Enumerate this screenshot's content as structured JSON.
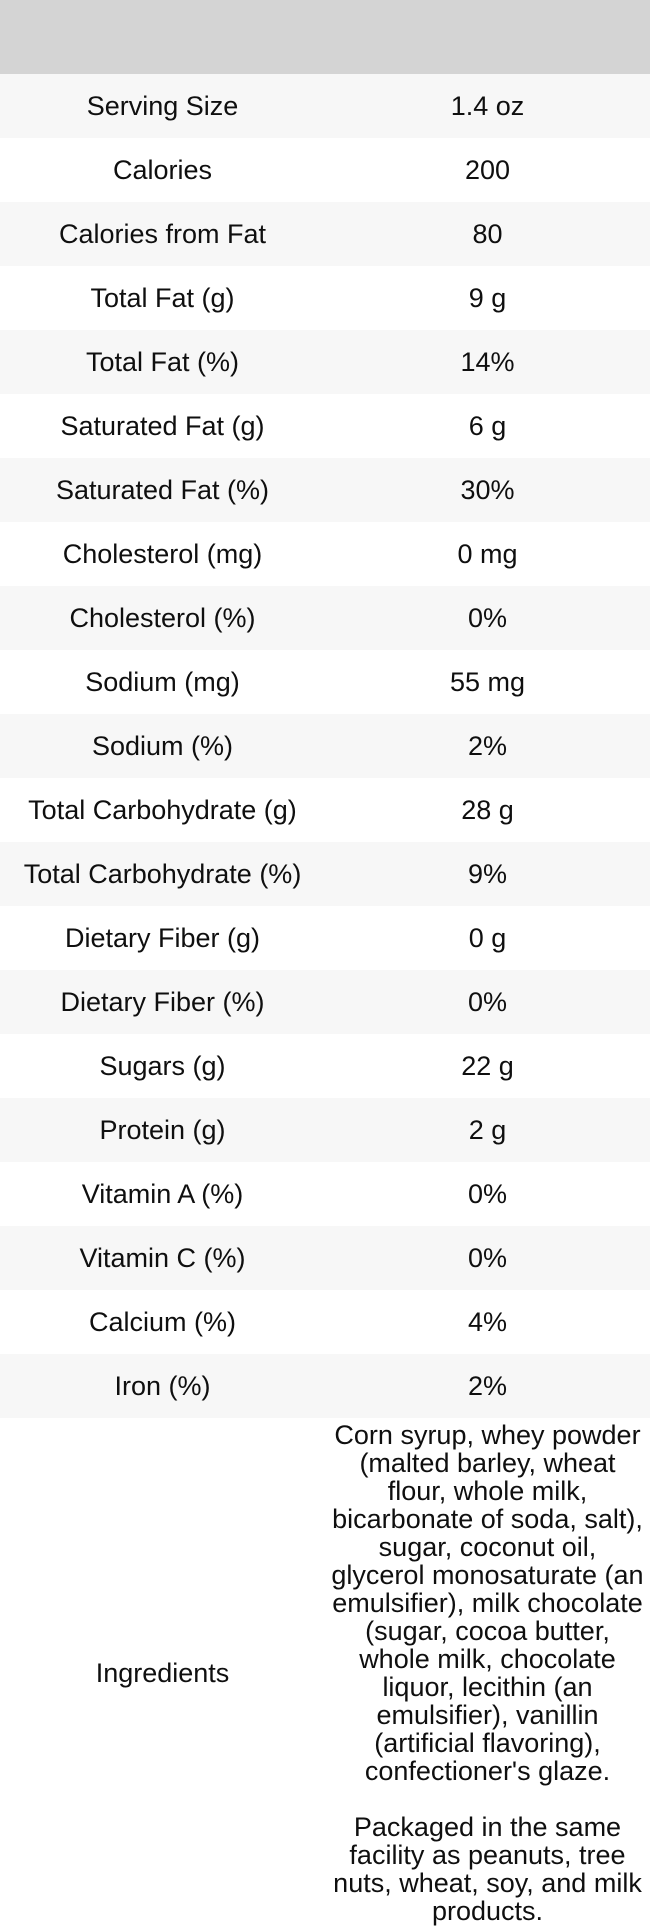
{
  "table": {
    "header": {
      "label": "",
      "value": ""
    },
    "rows": [
      {
        "label": "Serving Size",
        "value": "1.4 oz"
      },
      {
        "label": "Calories",
        "value": "200"
      },
      {
        "label": "Calories from Fat",
        "value": "80"
      },
      {
        "label": "Total Fat (g)",
        "value": "9 g"
      },
      {
        "label": "Total Fat (%)",
        "value": "14%"
      },
      {
        "label": "Saturated Fat (g)",
        "value": "6 g"
      },
      {
        "label": "Saturated Fat (%)",
        "value": "30%"
      },
      {
        "label": "Cholesterol (mg)",
        "value": "0 mg"
      },
      {
        "label": "Cholesterol (%)",
        "value": "0%"
      },
      {
        "label": "Sodium (mg)",
        "value": "55 mg"
      },
      {
        "label": "Sodium (%)",
        "value": "2%"
      },
      {
        "label": "Total Carbohydrate (g)",
        "value": "28 g"
      },
      {
        "label": "Total Carbohydrate (%)",
        "value": "9%"
      },
      {
        "label": "Dietary Fiber (g)",
        "value": "0 g"
      },
      {
        "label": "Dietary Fiber (%)",
        "value": "0%"
      },
      {
        "label": "Sugars (g)",
        "value": "22 g"
      },
      {
        "label": "Protein (g)",
        "value": "2 g"
      },
      {
        "label": "Vitamin A (%)",
        "value": "0%"
      },
      {
        "label": "Vitamin C (%)",
        "value": "0%"
      },
      {
        "label": "Calcium (%)",
        "value": "4%"
      },
      {
        "label": "Iron (%)",
        "value": "2%"
      }
    ],
    "ingredients_row": {
      "label": "Ingredients",
      "value": "Corn syrup, whey powder (malted barley, wheat flour, whole milk, bicarbonate of soda, salt), sugar, coconut oil, glycerol monosaturate (an emulsifier), milk chocolate (sugar, cocoa butter, whole milk, chocolate liquor, lecithin (an emulsifier), vanillin (artificial flavoring), confectioner's glaze.\n\nPackaged in the same facility as peanuts, tree nuts, wheat, soy, and milk products."
    }
  },
  "colors": {
    "header_bg": "#d4d4d4",
    "stripe_bg": "#f7f7f7",
    "row_bg": "#ffffff",
    "text": "#0f0f0f"
  }
}
